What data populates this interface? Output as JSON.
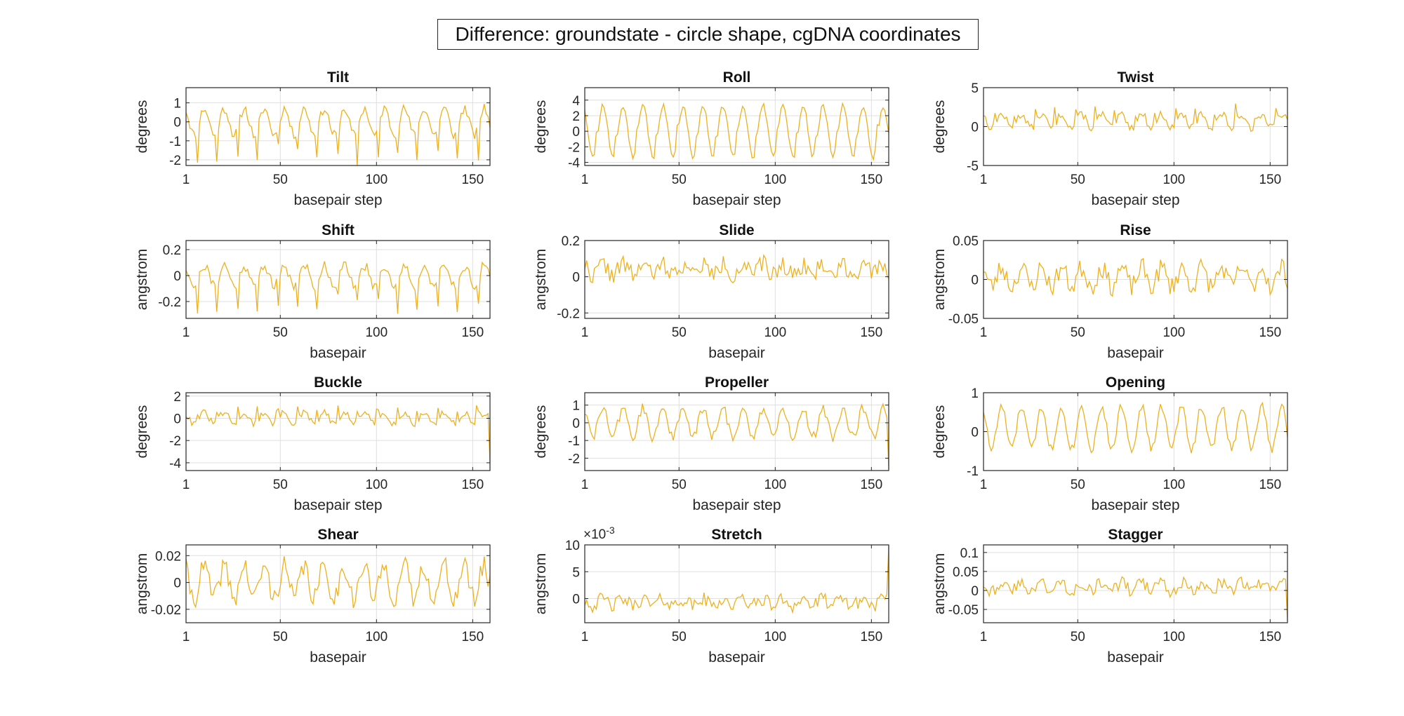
{
  "figure": {
    "title": "Difference: groundstate - circle shape, cgDNA coordinates",
    "line_color": "#EDB120"
  },
  "chart_data": [
    {
      "type": "line",
      "title": "Tilt",
      "ylabel": "degrees",
      "xlabel": "basepair step",
      "xlim": [
        1,
        159
      ],
      "ylim": [
        -2.3,
        1.8
      ],
      "xticks": [
        1,
        50,
        100,
        150
      ],
      "yticks": [
        -2,
        -1,
        0,
        1
      ],
      "yticklabels": [
        "-2",
        "-1",
        "0",
        "1"
      ],
      "grid": true,
      "exponent_label": "",
      "style": {
        "kind": "periodic",
        "amp": 0.7,
        "period": 10.4,
        "spikes": "down",
        "spikeAmp": 1.5,
        "noise": 0.25,
        "seed": 11
      }
    },
    {
      "type": "line",
      "title": "Roll",
      "ylabel": "degrees",
      "xlabel": "basepair step",
      "xlim": [
        1,
        159
      ],
      "ylim": [
        -4.4,
        5.6
      ],
      "xticks": [
        1,
        50,
        100,
        150
      ],
      "yticks": [
        -4,
        -2,
        0,
        2,
        4
      ],
      "yticklabels": [
        "-4",
        "-2",
        "0",
        "2",
        "4"
      ],
      "grid": true,
      "exponent_label": "",
      "style": {
        "kind": "periodic",
        "amp": 3.3,
        "period": 10.4,
        "spikes": "up",
        "spikeAmp": 1.5,
        "noise": 0.35,
        "seed": 12
      }
    },
    {
      "type": "line",
      "title": "Twist",
      "ylabel": "degrees",
      "xlabel": "basepair step",
      "xlim": [
        1,
        159
      ],
      "ylim": [
        -5,
        5
      ],
      "xticks": [
        1,
        50,
        100,
        150
      ],
      "yticks": [
        -5,
        0,
        5
      ],
      "yticklabels": [
        "-5",
        "0",
        "5"
      ],
      "grid": true,
      "exponent_label": "",
      "style": {
        "kind": "periodic",
        "amp": 0.9,
        "period": 10.4,
        "spikes": "up",
        "spikeAmp": 2.0,
        "noise": 0.5,
        "offset": 0.7,
        "seed": 13
      }
    },
    {
      "type": "line",
      "title": "Shift",
      "ylabel": "angstrom",
      "xlabel": "basepair",
      "xlim": [
        1,
        159
      ],
      "ylim": [
        -0.33,
        0.27
      ],
      "xticks": [
        1,
        50,
        100,
        150
      ],
      "yticks": [
        -0.2,
        0,
        0.2
      ],
      "yticklabels": [
        "-0.2",
        "0",
        "0.2"
      ],
      "grid": true,
      "exponent_label": "",
      "style": {
        "kind": "periodic",
        "amp": 0.08,
        "period": 10.4,
        "spikes": "down",
        "spikeAmp": 0.2,
        "noise": 0.04,
        "seed": 21
      }
    },
    {
      "type": "line",
      "title": "Slide",
      "ylabel": "angstrom",
      "xlabel": "basepair",
      "xlim": [
        1,
        159
      ],
      "ylim": [
        -0.23,
        0.2
      ],
      "xticks": [
        1,
        50,
        100,
        150
      ],
      "yticks": [
        -0.2,
        0,
        0.2
      ],
      "yticklabels": [
        "-0.2",
        "0",
        "0.2"
      ],
      "grid": true,
      "exponent_label": "",
      "style": {
        "kind": "noisy",
        "amp": 0.03,
        "period": 10.4,
        "noise": 0.05,
        "offset": 0.04,
        "seed": 22
      }
    },
    {
      "type": "line",
      "title": "Rise",
      "ylabel": "angstrom",
      "xlabel": "basepair",
      "xlim": [
        1,
        159
      ],
      "ylim": [
        -0.05,
        0.05
      ],
      "xticks": [
        1,
        50,
        100,
        150
      ],
      "yticks": [
        -0.05,
        0,
        0.05
      ],
      "yticklabels": [
        "-0.05",
        "0",
        "0.05"
      ],
      "grid": true,
      "exponent_label": "",
      "style": {
        "kind": "noisy",
        "amp": 0.012,
        "period": 10.4,
        "noise": 0.013,
        "offset": 0.003,
        "seed": 23
      }
    },
    {
      "type": "line",
      "title": "Buckle",
      "ylabel": "degrees",
      "xlabel": "basepair step",
      "xlim": [
        1,
        159
      ],
      "ylim": [
        -4.7,
        2.3
      ],
      "xticks": [
        1,
        50,
        100,
        150
      ],
      "yticks": [
        -4,
        -2,
        0,
        2
      ],
      "yticklabels": [
        "-4",
        "-2",
        "0",
        "2"
      ],
      "grid": true,
      "exponent_label": "",
      "style": {
        "kind": "periodic",
        "amp": 0.5,
        "period": 10.4,
        "spikes": "up",
        "spikeAmp": 1.1,
        "noise": 0.3,
        "seed": 31,
        "tail": -4.1
      }
    },
    {
      "type": "line",
      "title": "Propeller",
      "ylabel": "degrees",
      "xlabel": "basepair step",
      "xlim": [
        1,
        159
      ],
      "ylim": [
        -2.7,
        1.7
      ],
      "xticks": [
        1,
        50,
        100,
        150
      ],
      "yticks": [
        -2,
        -1,
        0,
        1
      ],
      "yticklabels": [
        "-2",
        "-1",
        "0",
        "1"
      ],
      "grid": true,
      "exponent_label": "",
      "style": {
        "kind": "periodic",
        "amp": 0.8,
        "period": 10.4,
        "spikes": "none",
        "noise": 0.3,
        "seed": 32,
        "tail": -2.6
      }
    },
    {
      "type": "line",
      "title": "Opening",
      "ylabel": "degrees",
      "xlabel": "basepair step",
      "xlim": [
        1,
        159
      ],
      "ylim": [
        -1,
        1
      ],
      "xticks": [
        1,
        50,
        100,
        150
      ],
      "yticks": [
        -1,
        0,
        1
      ],
      "yticklabels": [
        "-1",
        "0",
        "1"
      ],
      "grid": true,
      "exponent_label": "",
      "style": {
        "kind": "periodic",
        "amp": 0.55,
        "period": 10.4,
        "spikes": "none",
        "noise": 0.12,
        "offset": 0.1,
        "seed": 33
      }
    },
    {
      "type": "line",
      "title": "Shear",
      "ylabel": "angstrom",
      "xlabel": "basepair",
      "xlim": [
        1,
        159
      ],
      "ylim": [
        -0.03,
        0.028
      ],
      "xticks": [
        1,
        50,
        100,
        150
      ],
      "yticks": [
        -0.02,
        0,
        0.02
      ],
      "yticklabels": [
        "-0.02",
        "0",
        "0.02"
      ],
      "grid": true,
      "exponent_label": "",
      "style": {
        "kind": "periodic",
        "amp": 0.012,
        "period": 10.4,
        "spikes": "none",
        "noise": 0.008,
        "seed": 41
      }
    },
    {
      "type": "line",
      "title": "Stretch",
      "ylabel": "angstrom",
      "xlabel": "basepair",
      "xlim": [
        1,
        159
      ],
      "ylim": [
        -0.0045,
        0.01
      ],
      "xticks": [
        1,
        50,
        100,
        150
      ],
      "yticks": [
        0,
        0.005,
        0.01
      ],
      "yticklabels": [
        "0",
        "5",
        "10"
      ],
      "grid": true,
      "exponent_label": "×10",
      "exponent_power": "-3",
      "style": {
        "kind": "noisy",
        "amp": 0.0006,
        "period": 10.4,
        "noise": 0.0013,
        "offset": -0.0007,
        "seed": 42,
        "tail": 0.0098
      }
    },
    {
      "type": "line",
      "title": "Stagger",
      "ylabel": "angstrom",
      "xlabel": "basepair",
      "xlim": [
        1,
        159
      ],
      "ylim": [
        -0.085,
        0.12
      ],
      "xticks": [
        1,
        50,
        100,
        150
      ],
      "yticks": [
        -0.05,
        0,
        0.05,
        0.1
      ],
      "yticklabels": [
        "-0.05",
        "0",
        "0.05",
        "0.1"
      ],
      "grid": true,
      "exponent_label": "",
      "style": {
        "kind": "noisy",
        "amp": 0.012,
        "period": 10.4,
        "noise": 0.017,
        "offset": 0.01,
        "seed": 43,
        "tail": -0.08
      }
    }
  ]
}
